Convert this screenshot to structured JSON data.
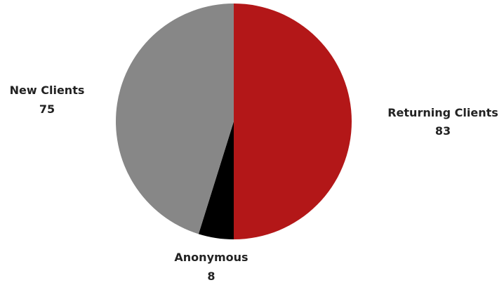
{
  "chart_data": {
    "type": "pie",
    "title": "",
    "slices": [
      {
        "label": "Returning Clients",
        "value": 83,
        "color": "#b31718"
      },
      {
        "label": "Anonymous",
        "value": 8,
        "color": "#000000"
      },
      {
        "label": "New Clients",
        "value": 75,
        "color": "#878787"
      }
    ],
    "start_angle": "12 o'clock",
    "direction": "clockwise",
    "legend": "none",
    "label_text_color": "#222222"
  }
}
